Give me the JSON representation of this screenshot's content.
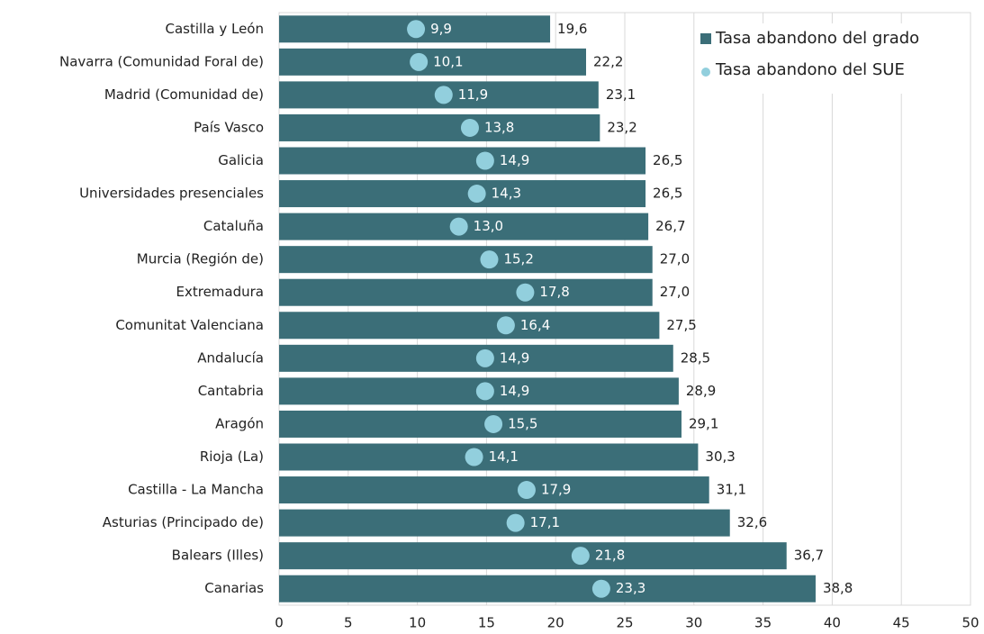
{
  "chart_data": {
    "type": "bar",
    "orientation": "horizontal",
    "categories": [
      "Castilla y León",
      "Navarra (Comunidad Foral de)",
      "Madrid (Comunidad de)",
      "País Vasco",
      "Galicia",
      "Universidades presenciales",
      "Cataluña",
      "Murcia (Región de)",
      "Extremadura",
      "Comunitat Valenciana",
      "Andalucía",
      "Cantabria",
      "Aragón",
      "Rioja (La)",
      "Castilla - La Mancha",
      "Asturias (Principado de)",
      "Balears (Illes)",
      "Canarias"
    ],
    "series": [
      {
        "name": "Tasa abandono del grado",
        "type": "bar",
        "color": "#3b6e78",
        "values": [
          19.6,
          22.2,
          23.1,
          23.2,
          26.5,
          26.5,
          26.7,
          27.0,
          27.0,
          27.5,
          28.5,
          28.9,
          29.1,
          30.3,
          31.1,
          32.6,
          36.7,
          38.8
        ],
        "value_labels": [
          "19,6",
          "22,2",
          "23,1",
          "23,2",
          "26,5",
          "26,5",
          "26,7",
          "27,0",
          "27,0",
          "27,5",
          "28,5",
          "28,9",
          "29,1",
          "30,3",
          "31,1",
          "32,6",
          "36,7",
          "38,8"
        ]
      },
      {
        "name": "Tasa abandono del SUE",
        "type": "scatter",
        "color": "#92cfdd",
        "values": [
          9.9,
          10.1,
          11.9,
          13.8,
          14.9,
          14.3,
          13.0,
          15.2,
          17.8,
          16.4,
          14.9,
          14.9,
          15.5,
          14.1,
          17.9,
          17.1,
          21.8,
          23.3
        ],
        "value_labels": [
          "9,9",
          "10,1",
          "11,9",
          "13,8",
          "14,9",
          "14,3",
          "13,0",
          "15,2",
          "17,8",
          "16,4",
          "14,9",
          "14,9",
          "15,5",
          "14,1",
          "17,9",
          "17,1",
          "21,8",
          "23,3"
        ]
      }
    ],
    "xlim": [
      0,
      50
    ],
    "xticks": [
      0,
      5,
      10,
      15,
      20,
      25,
      30,
      35,
      40,
      45,
      50
    ],
    "grid": true,
    "legend": "upper right"
  }
}
